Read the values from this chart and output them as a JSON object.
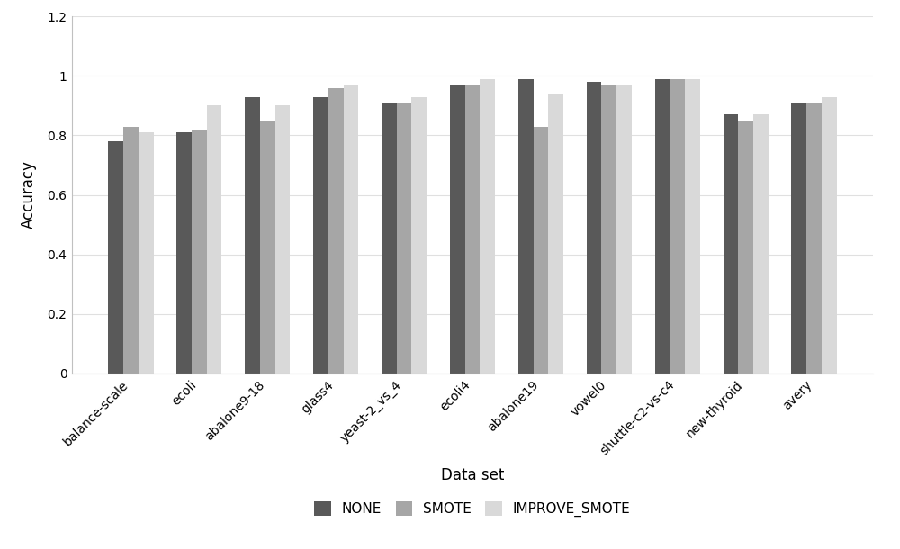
{
  "categories": [
    "balance-scale",
    "ecoli",
    "abalone9-18",
    "glass4",
    "yeast-2_vs_4",
    "ecoli4",
    "abalone19",
    "vowel0",
    "shuttle-c2-vs-c4",
    "new-thyroid",
    "avery"
  ],
  "none_values": [
    0.78,
    0.81,
    0.93,
    0.93,
    0.91,
    0.97,
    0.99,
    0.98,
    0.99,
    0.87,
    0.91
  ],
  "smote_values": [
    0.83,
    0.82,
    0.85,
    0.96,
    0.91,
    0.97,
    0.83,
    0.97,
    0.99,
    0.85,
    0.91
  ],
  "improve_values": [
    0.81,
    0.9,
    0.9,
    0.97,
    0.93,
    0.99,
    0.94,
    0.97,
    0.99,
    0.87,
    0.93
  ],
  "none_color": "#595959",
  "smote_color": "#a6a6a6",
  "improve_color": "#d9d9d9",
  "xlabel": "Data set",
  "ylabel": "Accuracy",
  "ylim": [
    0,
    1.2
  ],
  "yticks": [
    0,
    0.2,
    0.4,
    0.6,
    0.8,
    1.0,
    1.2
  ],
  "ytick_labels": [
    "0",
    "0.2",
    "0.4",
    "0.6",
    "0.8",
    "1",
    "1.2"
  ],
  "legend_labels": [
    "NONE",
    "SMOTE",
    "IMPROVE_SMOTE"
  ],
  "bar_width": 0.22,
  "xlabel_fontsize": 12,
  "ylabel_fontsize": 12,
  "tick_fontsize": 10,
  "legend_fontsize": 11,
  "background_color": "#ffffff",
  "grid_color": "#e0e0e0",
  "spine_color": "#c0c0c0"
}
